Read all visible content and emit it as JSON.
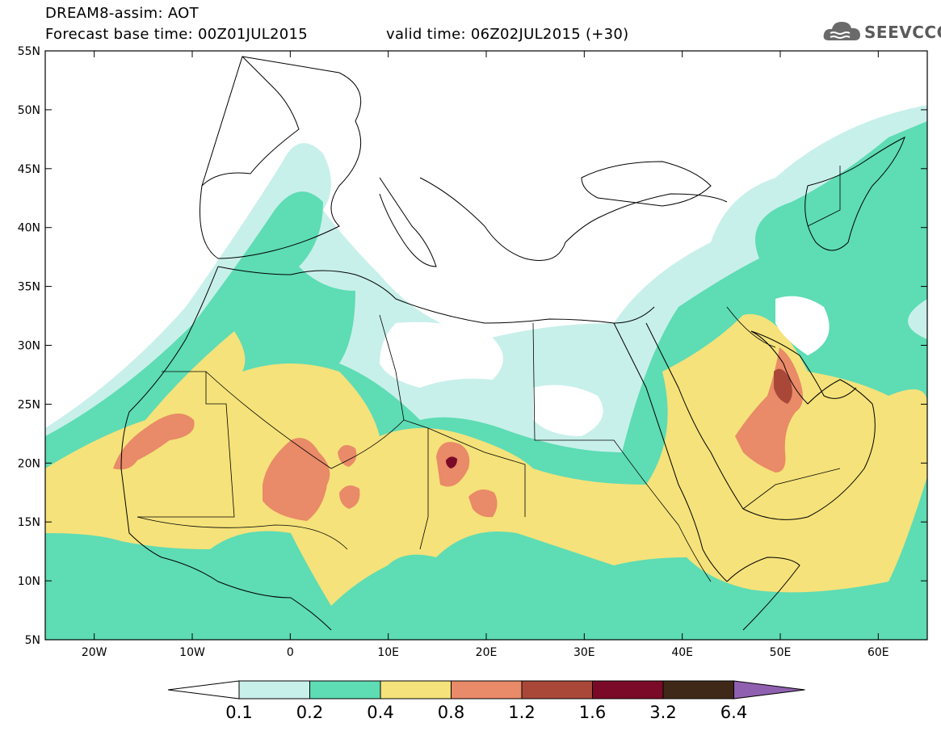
{
  "header": {
    "title": "DREAM8-assim: AOT",
    "base_time": "Forecast base time: 00Z01JUL2015",
    "valid_time": "valid time: 06Z02JUL2015 (+30)"
  },
  "logo": {
    "text": "SEEVCCC",
    "icon": "cloud-icon"
  },
  "map": {
    "lat_range": [
      5,
      55
    ],
    "lon_range": [
      -25,
      65
    ],
    "lat_labels": [
      "55N",
      "50N",
      "45N",
      "40N",
      "35N",
      "30N",
      "25N",
      "20N",
      "15N",
      "10N",
      "5N"
    ],
    "lon_labels": [
      "20W",
      "10W",
      "0",
      "10E",
      "20E",
      "30E",
      "40E",
      "50E",
      "60E"
    ],
    "ocean_color": "#ffffff",
    "coastline_color": "#000000"
  },
  "colorbar": {
    "labels": [
      "0.1",
      "0.2",
      "0.4",
      "0.8",
      "1.2",
      "1.6",
      "3.2",
      "6.4"
    ],
    "colors": [
      "#c8f0ea",
      "#5edcb4",
      "#f5e27a",
      "#e98a68",
      "#a94838",
      "#7a0a28",
      "#402818"
    ],
    "under_color": "#ffffff",
    "over_color": "#9060b0"
  }
}
